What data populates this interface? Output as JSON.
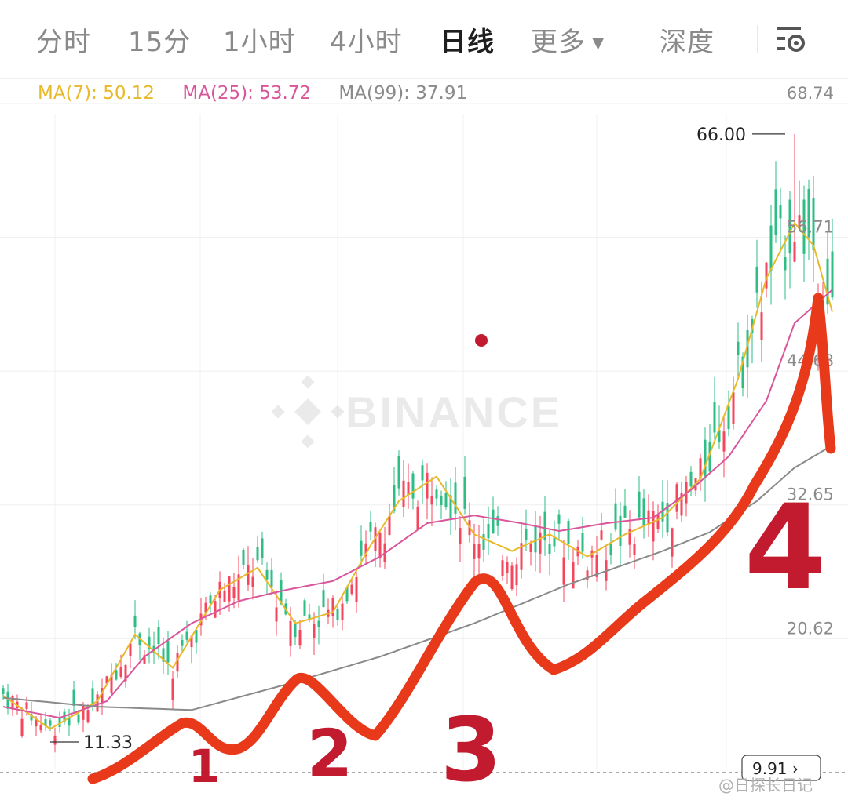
{
  "tabs": [
    {
      "label": "分时"
    },
    {
      "label": "15分"
    },
    {
      "label": "1小时"
    },
    {
      "label": "4小时"
    },
    {
      "label": "日线",
      "active": true
    },
    {
      "label": "更多",
      "dropdown": true
    },
    {
      "label": "深度"
    }
  ],
  "toolbar": {
    "settings_icon": "chart-settings-icon"
  },
  "ma_indicators": [
    {
      "label": "MA(7): 50.12",
      "color": "#e8b92a"
    },
    {
      "label": "MA(25): 53.72",
      "color": "#d9569b"
    },
    {
      "label": "MA(99): 37.91",
      "color": "#8a8a8a"
    }
  ],
  "watermark": "BINANCE",
  "footer_watermark": "@日探长日记",
  "colors": {
    "up": "#2ebd85",
    "down": "#f6465d",
    "ma7": "#e8b92a",
    "ma25": "#d9569b",
    "ma99": "#8a8a8a",
    "annotation": "#e8391a",
    "annotation_numbers": "#c21a2e"
  },
  "chart_data": {
    "type": "candlestick",
    "y_axis_ticks": [
      68.74,
      56.71,
      44.68,
      32.65,
      20.62
    ],
    "ylim": [
      8.58,
      68.74
    ],
    "highest_label": "66.00",
    "lowest_label": "11.33",
    "last_price_label": "9.91",
    "grid": true,
    "ma_series": [
      {
        "name": "MA(7)",
        "points": [
          [
            0,
            15.5
          ],
          [
            10,
            12.5
          ],
          [
            20,
            15
          ],
          [
            28,
            21
          ],
          [
            36,
            18
          ],
          [
            46,
            25
          ],
          [
            54,
            27
          ],
          [
            62,
            22
          ],
          [
            70,
            23
          ],
          [
            78,
            29
          ],
          [
            84,
            33
          ],
          [
            92,
            35.2
          ],
          [
            100,
            30
          ],
          [
            108,
            28.5
          ],
          [
            116,
            30
          ],
          [
            124,
            28
          ],
          [
            132,
            30
          ],
          [
            140,
            31.5
          ],
          [
            148,
            35
          ],
          [
            156,
            44
          ],
          [
            162,
            53
          ],
          [
            168,
            58
          ],
          [
            172,
            56
          ],
          [
            176,
            50
          ]
        ]
      },
      {
        "name": "MA(25)",
        "points": [
          [
            0,
            14.5
          ],
          [
            12,
            13.5
          ],
          [
            22,
            15
          ],
          [
            30,
            19
          ],
          [
            40,
            22
          ],
          [
            50,
            24
          ],
          [
            60,
            25
          ],
          [
            70,
            25.8
          ],
          [
            80,
            28
          ],
          [
            90,
            31
          ],
          [
            100,
            31.7
          ],
          [
            110,
            31
          ],
          [
            118,
            30.3
          ],
          [
            128,
            31
          ],
          [
            138,
            31.5
          ],
          [
            146,
            34
          ],
          [
            154,
            37
          ],
          [
            162,
            42
          ],
          [
            168,
            49
          ],
          [
            176,
            52
          ]
        ]
      },
      {
        "name": "MA(99)",
        "points": [
          [
            0,
            15.3
          ],
          [
            20,
            14.5
          ],
          [
            40,
            14.2
          ],
          [
            60,
            16.5
          ],
          [
            80,
            19
          ],
          [
            100,
            22
          ],
          [
            120,
            25.5
          ],
          [
            140,
            28.5
          ],
          [
            150,
            30.2
          ],
          [
            160,
            33
          ],
          [
            168,
            36
          ],
          [
            176,
            38
          ]
        ]
      }
    ],
    "annotation_labels": [
      "1",
      "2",
      "3",
      "4"
    ]
  }
}
